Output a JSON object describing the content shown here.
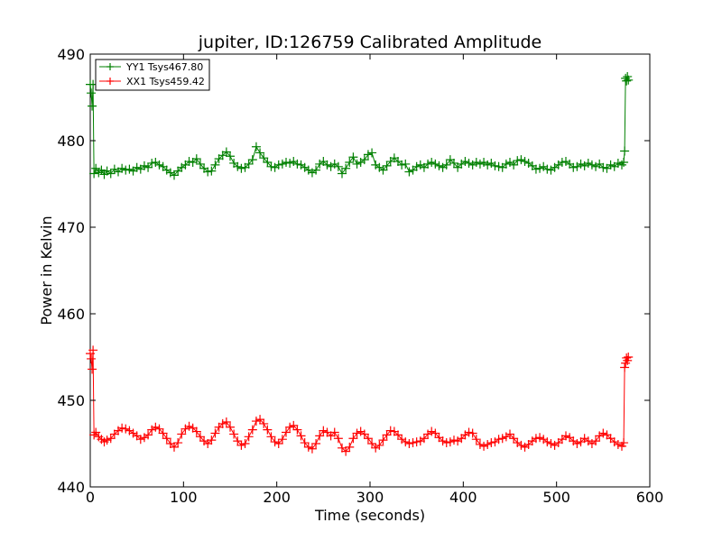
{
  "chart_data": {
    "type": "line",
    "title": "jupiter, ID:126759 Calibrated Amplitude",
    "xlabel": "Time (seconds)",
    "ylabel": "Power in Kelvin",
    "xlim": [
      0,
      600
    ],
    "ylim": [
      440,
      490
    ],
    "xticks": [
      "0",
      "100",
      "200",
      "300",
      "400",
      "500",
      "600"
    ],
    "yticks": [
      "440",
      "450",
      "460",
      "470",
      "480",
      "490"
    ],
    "grid": false,
    "legend_position": "top-left",
    "marker": "+",
    "series": [
      {
        "name": "YY1 Tsys467.80",
        "color": "#008000",
        "points": [
          [
            0,
            486.5
          ],
          [
            1,
            485.5
          ],
          [
            2,
            484.0
          ],
          [
            3,
            486.5
          ],
          [
            4,
            476.2
          ],
          [
            6,
            476.8
          ],
          [
            9,
            476.3
          ],
          [
            12,
            476.6
          ],
          [
            15,
            476.1
          ],
          [
            18,
            476.5
          ],
          [
            22,
            476.2
          ],
          [
            26,
            476.7
          ],
          [
            30,
            476.4
          ],
          [
            34,
            476.8
          ],
          [
            38,
            476.6
          ],
          [
            42,
            476.7
          ],
          [
            46,
            476.5
          ],
          [
            50,
            476.9
          ],
          [
            54,
            476.7
          ],
          [
            58,
            477.1
          ],
          [
            62,
            476.9
          ],
          [
            66,
            477.4
          ],
          [
            70,
            477.5
          ],
          [
            74,
            477.2
          ],
          [
            78,
            477.0
          ],
          [
            82,
            476.6
          ],
          [
            86,
            476.3
          ],
          [
            90,
            476.0
          ],
          [
            94,
            476.5
          ],
          [
            98,
            476.9
          ],
          [
            102,
            477.2
          ],
          [
            106,
            477.6
          ],
          [
            110,
            477.5
          ],
          [
            114,
            477.9
          ],
          [
            118,
            477.3
          ],
          [
            122,
            476.8
          ],
          [
            126,
            476.4
          ],
          [
            130,
            476.5
          ],
          [
            134,
            477.2
          ],
          [
            138,
            477.9
          ],
          [
            142,
            478.3
          ],
          [
            146,
            478.7
          ],
          [
            150,
            478.2
          ],
          [
            154,
            477.4
          ],
          [
            158,
            477.0
          ],
          [
            162,
            476.8
          ],
          [
            166,
            476.9
          ],
          [
            170,
            477.3
          ],
          [
            174,
            477.8
          ],
          [
            178,
            479.3
          ],
          [
            182,
            478.6
          ],
          [
            186,
            478.0
          ],
          [
            190,
            477.5
          ],
          [
            194,
            477.0
          ],
          [
            198,
            476.9
          ],
          [
            202,
            477.2
          ],
          [
            206,
            477.3
          ],
          [
            210,
            477.5
          ],
          [
            214,
            477.4
          ],
          [
            218,
            477.6
          ],
          [
            222,
            477.3
          ],
          [
            226,
            477.2
          ],
          [
            230,
            476.9
          ],
          [
            234,
            476.6
          ],
          [
            238,
            476.3
          ],
          [
            242,
            476.6
          ],
          [
            246,
            477.3
          ],
          [
            250,
            477.6
          ],
          [
            254,
            477.2
          ],
          [
            258,
            477.0
          ],
          [
            262,
            477.3
          ],
          [
            266,
            477.0
          ],
          [
            270,
            476.2
          ],
          [
            274,
            476.8
          ],
          [
            278,
            477.5
          ],
          [
            282,
            478.1
          ],
          [
            286,
            477.3
          ],
          [
            290,
            477.5
          ],
          [
            294,
            477.8
          ],
          [
            298,
            478.4
          ],
          [
            302,
            478.6
          ],
          [
            306,
            477.2
          ],
          [
            310,
            476.9
          ],
          [
            314,
            476.6
          ],
          [
            318,
            477.1
          ],
          [
            322,
            477.6
          ],
          [
            326,
            478.0
          ],
          [
            330,
            477.6
          ],
          [
            334,
            477.2
          ],
          [
            338,
            477.3
          ],
          [
            342,
            476.4
          ],
          [
            346,
            476.6
          ],
          [
            350,
            477.0
          ],
          [
            354,
            477.2
          ],
          [
            358,
            476.9
          ],
          [
            362,
            477.3
          ],
          [
            366,
            477.5
          ],
          [
            370,
            477.3
          ],
          [
            374,
            477.1
          ],
          [
            378,
            476.9
          ],
          [
            382,
            477.2
          ],
          [
            386,
            477.8
          ],
          [
            390,
            477.4
          ],
          [
            394,
            476.9
          ],
          [
            398,
            477.3
          ],
          [
            402,
            477.6
          ],
          [
            406,
            477.4
          ],
          [
            410,
            477.2
          ],
          [
            414,
            477.5
          ],
          [
            418,
            477.3
          ],
          [
            422,
            477.5
          ],
          [
            426,
            477.2
          ],
          [
            430,
            477.4
          ],
          [
            434,
            477.1
          ],
          [
            438,
            477.0
          ],
          [
            442,
            476.9
          ],
          [
            446,
            477.3
          ],
          [
            450,
            477.5
          ],
          [
            454,
            477.2
          ],
          [
            458,
            477.7
          ],
          [
            462,
            477.8
          ],
          [
            466,
            477.6
          ],
          [
            470,
            477.4
          ],
          [
            474,
            477.1
          ],
          [
            478,
            476.7
          ],
          [
            482,
            476.8
          ],
          [
            486,
            477.0
          ],
          [
            490,
            476.7
          ],
          [
            494,
            476.6
          ],
          [
            498,
            476.9
          ],
          [
            502,
            477.2
          ],
          [
            506,
            477.5
          ],
          [
            510,
            477.6
          ],
          [
            514,
            477.3
          ],
          [
            518,
            476.9
          ],
          [
            522,
            477.0
          ],
          [
            526,
            477.3
          ],
          [
            530,
            477.1
          ],
          [
            534,
            477.4
          ],
          [
            538,
            477.2
          ],
          [
            542,
            477.0
          ],
          [
            546,
            477.3
          ],
          [
            550,
            476.9
          ],
          [
            554,
            476.8
          ],
          [
            558,
            477.2
          ],
          [
            562,
            477.0
          ],
          [
            566,
            477.4
          ],
          [
            570,
            477.2
          ],
          [
            572,
            477.5
          ],
          [
            573,
            478.8
          ],
          [
            574,
            487.2
          ],
          [
            575,
            486.9
          ],
          [
            576,
            487.4
          ],
          [
            577,
            487.0
          ]
        ]
      },
      {
        "name": "XX1 Tsys459.42",
        "color": "#ff0000",
        "points": [
          [
            0,
            455.4
          ],
          [
            1,
            454.8
          ],
          [
            2,
            453.6
          ],
          [
            3,
            455.8
          ],
          [
            4,
            446.0
          ],
          [
            6,
            446.3
          ],
          [
            9,
            445.8
          ],
          [
            12,
            445.5
          ],
          [
            15,
            445.2
          ],
          [
            18,
            445.4
          ],
          [
            22,
            445.6
          ],
          [
            26,
            446.1
          ],
          [
            30,
            446.5
          ],
          [
            34,
            446.8
          ],
          [
            38,
            446.7
          ],
          [
            42,
            446.5
          ],
          [
            46,
            446.2
          ],
          [
            50,
            445.9
          ],
          [
            54,
            445.5
          ],
          [
            58,
            445.7
          ],
          [
            62,
            446.0
          ],
          [
            66,
            446.6
          ],
          [
            70,
            446.9
          ],
          [
            74,
            446.7
          ],
          [
            78,
            446.2
          ],
          [
            82,
            445.6
          ],
          [
            86,
            445.0
          ],
          [
            90,
            444.6
          ],
          [
            94,
            445.1
          ],
          [
            98,
            446.1
          ],
          [
            102,
            446.7
          ],
          [
            106,
            447.0
          ],
          [
            110,
            446.8
          ],
          [
            114,
            446.4
          ],
          [
            118,
            445.8
          ],
          [
            122,
            445.3
          ],
          [
            126,
            445.0
          ],
          [
            130,
            445.4
          ],
          [
            134,
            446.2
          ],
          [
            138,
            446.9
          ],
          [
            142,
            447.3
          ],
          [
            146,
            447.5
          ],
          [
            150,
            446.9
          ],
          [
            154,
            446.1
          ],
          [
            158,
            445.3
          ],
          [
            162,
            444.8
          ],
          [
            166,
            445.0
          ],
          [
            170,
            445.8
          ],
          [
            174,
            446.6
          ],
          [
            178,
            447.6
          ],
          [
            182,
            447.8
          ],
          [
            186,
            447.3
          ],
          [
            190,
            446.6
          ],
          [
            194,
            445.8
          ],
          [
            198,
            445.2
          ],
          [
            202,
            445.0
          ],
          [
            206,
            445.5
          ],
          [
            210,
            446.3
          ],
          [
            214,
            446.9
          ],
          [
            218,
            447.1
          ],
          [
            222,
            446.6
          ],
          [
            226,
            445.9
          ],
          [
            230,
            445.1
          ],
          [
            234,
            444.6
          ],
          [
            238,
            444.4
          ],
          [
            242,
            445.0
          ],
          [
            246,
            445.9
          ],
          [
            250,
            446.5
          ],
          [
            254,
            446.3
          ],
          [
            258,
            445.9
          ],
          [
            262,
            446.3
          ],
          [
            266,
            445.6
          ],
          [
            270,
            444.5
          ],
          [
            274,
            444.1
          ],
          [
            278,
            444.6
          ],
          [
            282,
            445.6
          ],
          [
            286,
            446.2
          ],
          [
            290,
            446.4
          ],
          [
            294,
            446.1
          ],
          [
            298,
            445.6
          ],
          [
            302,
            445.0
          ],
          [
            306,
            444.5
          ],
          [
            310,
            444.8
          ],
          [
            314,
            445.4
          ],
          [
            318,
            446.0
          ],
          [
            322,
            446.5
          ],
          [
            326,
            446.4
          ],
          [
            330,
            446.0
          ],
          [
            334,
            445.5
          ],
          [
            338,
            445.2
          ],
          [
            342,
            445.0
          ],
          [
            346,
            445.1
          ],
          [
            350,
            445.2
          ],
          [
            354,
            445.3
          ],
          [
            358,
            445.6
          ],
          [
            362,
            446.1
          ],
          [
            366,
            446.4
          ],
          [
            370,
            446.2
          ],
          [
            374,
            445.7
          ],
          [
            378,
            445.3
          ],
          [
            382,
            445.1
          ],
          [
            386,
            445.2
          ],
          [
            390,
            445.4
          ],
          [
            394,
            445.3
          ],
          [
            398,
            445.6
          ],
          [
            402,
            446.0
          ],
          [
            406,
            446.3
          ],
          [
            410,
            446.2
          ],
          [
            414,
            445.5
          ],
          [
            418,
            444.9
          ],
          [
            422,
            444.7
          ],
          [
            426,
            444.9
          ],
          [
            430,
            445.1
          ],
          [
            434,
            445.2
          ],
          [
            438,
            445.5
          ],
          [
            442,
            445.6
          ],
          [
            446,
            445.8
          ],
          [
            450,
            446.1
          ],
          [
            454,
            445.6
          ],
          [
            458,
            445.1
          ],
          [
            462,
            444.8
          ],
          [
            466,
            444.6
          ],
          [
            470,
            444.9
          ],
          [
            474,
            445.3
          ],
          [
            478,
            445.6
          ],
          [
            482,
            445.7
          ],
          [
            486,
            445.5
          ],
          [
            490,
            445.2
          ],
          [
            494,
            445.0
          ],
          [
            498,
            444.8
          ],
          [
            502,
            445.1
          ],
          [
            506,
            445.5
          ],
          [
            510,
            445.9
          ],
          [
            514,
            445.7
          ],
          [
            518,
            445.3
          ],
          [
            522,
            445.0
          ],
          [
            526,
            445.2
          ],
          [
            530,
            445.6
          ],
          [
            534,
            445.3
          ],
          [
            538,
            445.0
          ],
          [
            542,
            445.3
          ],
          [
            546,
            445.9
          ],
          [
            550,
            446.2
          ],
          [
            554,
            446.0
          ],
          [
            558,
            445.6
          ],
          [
            562,
            445.2
          ],
          [
            566,
            444.9
          ],
          [
            570,
            444.7
          ],
          [
            572,
            445.1
          ],
          [
            573,
            453.8
          ],
          [
            574,
            454.3
          ],
          [
            575,
            454.9
          ],
          [
            576,
            454.6
          ],
          [
            577,
            455.0
          ]
        ]
      }
    ]
  }
}
